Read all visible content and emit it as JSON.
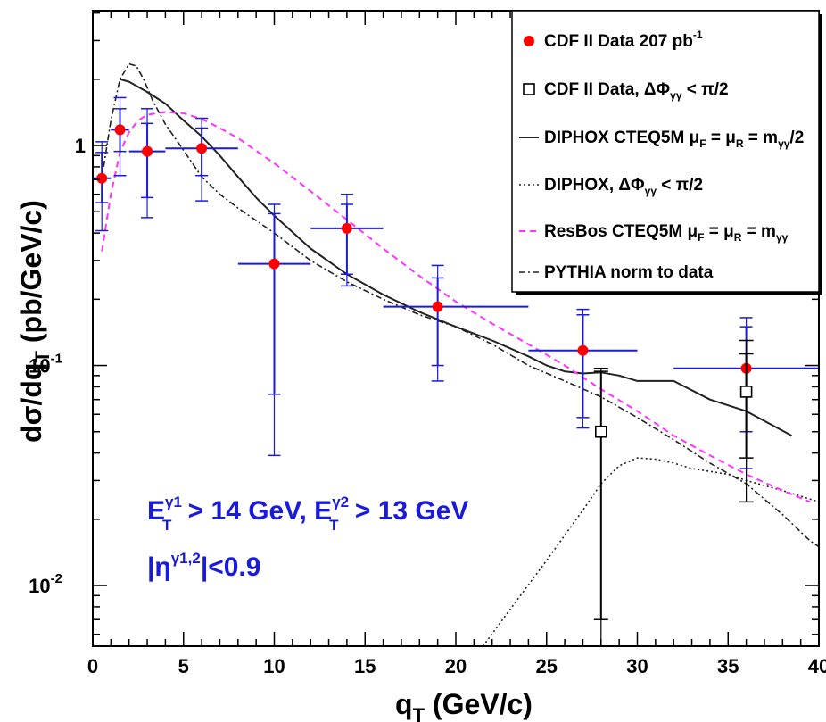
{
  "chart_data": {
    "type": "scatter",
    "title": "",
    "xlabel": "q",
    "xlabel_sub": "T",
    "xlabel_unit": " (GeV/c)",
    "ylabel": "dσ/dq",
    "ylabel_sub": "T",
    "ylabel_unit": " (pb/GeV/c)",
    "xlim": [
      0,
      40
    ],
    "ylim": [
      0.0053,
      4.1
    ],
    "y_scale": "log",
    "grid": false,
    "legend_position": "top-right",
    "x_ticks": [
      0,
      5,
      10,
      15,
      20,
      25,
      30,
      35,
      40
    ],
    "y_ticks": [
      {
        "value": 1,
        "label": "1"
      },
      {
        "value": 0.1,
        "label": "10",
        "exp": "-1"
      },
      {
        "value": 0.01,
        "label": "10",
        "exp": "-2"
      }
    ],
    "annotations": {
      "line1": {
        "a": "E",
        "a_sup": "γ1",
        "a_sub": "T",
        "b": " > 14 GeV, E",
        "b_sup": "γ2",
        "b_sub": "T",
        "c": " > 13 GeV"
      },
      "line2": {
        "a": "|η",
        "a_sup": "γ1,2",
        "b": "|<0.9"
      }
    },
    "legend": [
      {
        "key": "cdf",
        "text": "CDF II Data 207 pb",
        "sup": "-1",
        "sub": ""
      },
      {
        "key": "cdf_cut",
        "text": "CDF II Data, ΔΦ",
        "sub": "γγ",
        "tail": " < π/2"
      },
      {
        "key": "diphox",
        "text": "DIPHOX CTEQ5M μ",
        "sub": "F",
        "tail": " = μ",
        "sub2": "R",
        "tail2": " = m",
        "sub3": "γγ",
        "tail3": "/2"
      },
      {
        "key": "diphox_cut",
        "text": "DIPHOX, ΔΦ",
        "sub": "γγ",
        "tail": " < π/2"
      },
      {
        "key": "resbos",
        "text": "ResBos CTEQ5M μ",
        "sub": "F",
        "tail": " = μ",
        "sub2": "R",
        "tail2": " = m",
        "sub3": "γγ"
      },
      {
        "key": "pythia",
        "text": "PYTHIA norm to data"
      }
    ],
    "colors": {
      "data": "#ff0000",
      "errorbar": "#1a1adc",
      "resbos": "#ff33ff",
      "theory": "#222222",
      "note": "#1a1adc"
    },
    "series": [
      {
        "name": "CDF II Data 207 pb-1",
        "marker": "circle",
        "points": [
          {
            "x": 0.5,
            "xerr": [
              0.5,
              0.5
            ],
            "y": 0.71,
            "y_stat": [
              0.55,
              0.93
            ],
            "y_tot": [
              0.41,
              1.04
            ]
          },
          {
            "x": 1.5,
            "xerr": [
              0.5,
              0.5
            ],
            "y": 1.18,
            "y_stat": [
              0.94,
              1.47
            ],
            "y_tot": [
              0.73,
              1.65
            ]
          },
          {
            "x": 3.0,
            "xerr": [
              1.0,
              1.0
            ],
            "y": 0.94,
            "y_stat": [
              0.58,
              1.26
            ],
            "y_tot": [
              0.47,
              1.47
            ]
          },
          {
            "x": 6.0,
            "xerr": [
              2.0,
              2.0
            ],
            "y": 0.97,
            "y_stat": [
              0.73,
              1.2
            ],
            "y_tot": [
              0.56,
              1.33
            ]
          },
          {
            "x": 10.0,
            "xerr": [
              2.0,
              2.0
            ],
            "y": 0.29,
            "y_stat": [
              0.074,
              0.49
            ],
            "y_tot": [
              0.039,
              0.54
            ]
          },
          {
            "x": 14.0,
            "xerr": [
              2.0,
              2.0
            ],
            "y": 0.42,
            "y_stat": [
              0.26,
              0.54
            ],
            "y_tot": [
              0.23,
              0.6
            ]
          },
          {
            "x": 19.0,
            "xerr": [
              3.0,
              5.0
            ],
            "y": 0.185,
            "y_stat": [
              0.1,
              0.25
            ],
            "y_tot": [
              0.085,
              0.285
            ]
          },
          {
            "x": 27.0,
            "xerr": [
              3.0,
              3.0
            ],
            "y": 0.117,
            "y_stat": [
              0.058,
              0.17
            ],
            "y_tot": [
              0.052,
              0.18
            ]
          },
          {
            "x": 36.0,
            "xerr": [
              4.0,
              4.0
            ],
            "y": 0.097,
            "y_stat": [
              0.05,
              0.15
            ],
            "y_tot": [
              0.034,
              0.165
            ]
          }
        ]
      },
      {
        "name": "CDF II Data, ΔΦγγ < π/2",
        "marker": "open-square",
        "points": [
          {
            "x": 28.0,
            "y": 0.05,
            "y_stat": [
              0.007,
              0.094
            ],
            "y_tot": [
              0.005,
              0.097
            ]
          },
          {
            "x": 36.0,
            "y": 0.076,
            "y_stat": [
              0.038,
              0.113
            ],
            "y_tot": [
              0.024,
              0.13
            ]
          }
        ]
      },
      {
        "name": "DIPHOX CTEQ5M μF = μR = mγγ/2",
        "style": "solid",
        "x": [
          1.5,
          2,
          3,
          4,
          5,
          6,
          7,
          8,
          9,
          10,
          12,
          14,
          16,
          18,
          20,
          22,
          24,
          25,
          26,
          27,
          28,
          29,
          30,
          32,
          34,
          36,
          38.5
        ],
        "y": [
          2.0,
          1.95,
          1.75,
          1.55,
          1.3,
          1.1,
          0.9,
          0.72,
          0.58,
          0.48,
          0.34,
          0.26,
          0.21,
          0.175,
          0.15,
          0.13,
          0.11,
          0.1,
          0.094,
          0.092,
          0.093,
          0.09,
          0.085,
          0.085,
          0.07,
          0.062,
          0.048
        ]
      },
      {
        "name": "DIPHOX, ΔΦγγ < π/2",
        "style": "dotted",
        "x": [
          21.5,
          23,
          25,
          27,
          28,
          29,
          30,
          31,
          32,
          33,
          34,
          35,
          36,
          38,
          40
        ],
        "y": [
          0.005,
          0.0078,
          0.013,
          0.022,
          0.029,
          0.035,
          0.038,
          0.0375,
          0.036,
          0.034,
          0.033,
          0.032,
          0.03,
          0.027,
          0.024
        ]
      },
      {
        "name": "ResBos CTEQ5M μF = μR = mγγ",
        "style": "dashed",
        "x": [
          0.5,
          1,
          1.5,
          2,
          2.5,
          3,
          4,
          5,
          6,
          7,
          8,
          10,
          12,
          14,
          16,
          18,
          20,
          22,
          24,
          26,
          28,
          30,
          32,
          34,
          36,
          38,
          39.5
        ],
        "y": [
          0.33,
          0.6,
          0.93,
          1.15,
          1.3,
          1.38,
          1.42,
          1.4,
          1.32,
          1.2,
          1.08,
          0.83,
          0.62,
          0.46,
          0.34,
          0.255,
          0.195,
          0.155,
          0.125,
          0.1,
          0.078,
          0.062,
          0.048,
          0.039,
          0.032,
          0.027,
          0.024
        ]
      },
      {
        "name": "PYTHIA norm to data",
        "style": "dashdot",
        "x": [
          0.6,
          1,
          1.5,
          2,
          2.4,
          2.8,
          3.3,
          4,
          5,
          6,
          7,
          8,
          10,
          12,
          14,
          16,
          18,
          20,
          22,
          24,
          26,
          28,
          30,
          32,
          34,
          36,
          38,
          39.5,
          40
        ],
        "y": [
          0.8,
          1.3,
          2.0,
          2.35,
          2.3,
          2.0,
          1.6,
          1.25,
          0.95,
          0.72,
          0.6,
          0.52,
          0.4,
          0.3,
          0.24,
          0.2,
          0.17,
          0.15,
          0.125,
          0.1,
          0.085,
          0.072,
          0.058,
          0.046,
          0.036,
          0.029,
          0.021,
          0.016,
          0.015
        ]
      }
    ]
  }
}
